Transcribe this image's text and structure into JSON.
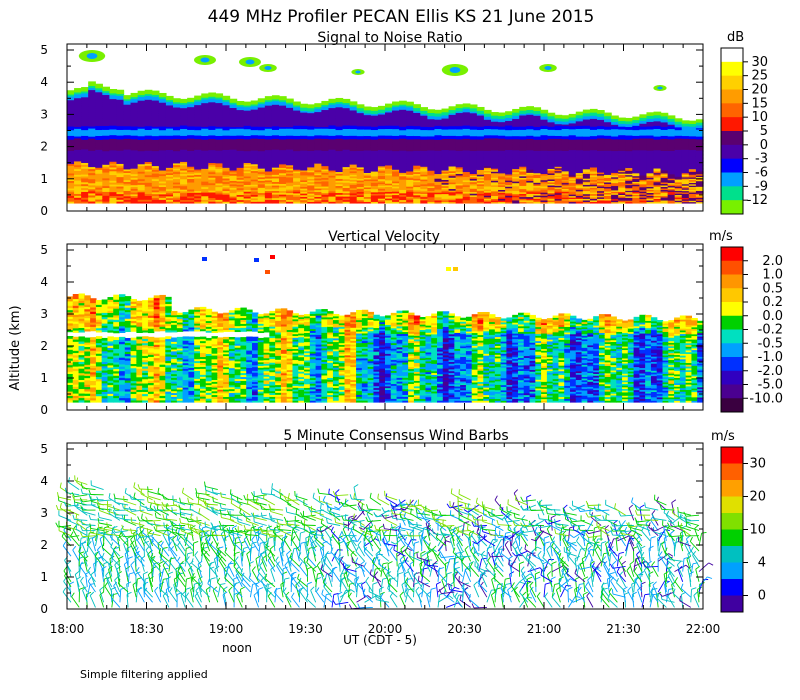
{
  "figure": {
    "title": "449 MHz Profiler PECAN Ellis KS 21 June 2015",
    "ylabel": "Altitude (km)",
    "xlabel": "UT  (CDT - 5)",
    "noon_label": "noon",
    "footnote": "Simple filtering applied",
    "x_ticks": [
      "18:00",
      "18:30",
      "19:00",
      "19:30",
      "20:00",
      "20:30",
      "21:00",
      "21:30",
      "22:00"
    ],
    "y_ticks": [
      "0",
      "1",
      "2",
      "3",
      "4",
      "5"
    ]
  },
  "chart_data": [
    {
      "type": "heatmap",
      "title": "Signal to Noise Ratio",
      "x_range": [
        "18:00",
        "22:00"
      ],
      "y_range": [
        0,
        5
      ],
      "colorbar": {
        "unit": "dB",
        "ticks": [
          "30",
          "25",
          "20",
          "15",
          "10",
          "5",
          "0",
          "-3",
          "-6",
          "-9",
          "-12"
        ],
        "colors": [
          "#ffffff",
          "#ffff00",
          "#ffd000",
          "#ff9c00",
          "#ff6400",
          "#ff1800",
          "#5a0070",
          "#4a00a8",
          "#0000ff",
          "#00a0ff",
          "#00e08c",
          "#78f000"
        ]
      }
    },
    {
      "type": "heatmap",
      "title": "Vertical Velocity",
      "x_range": [
        "18:00",
        "22:00"
      ],
      "y_range": [
        0,
        5
      ],
      "colorbar": {
        "unit": "m/s",
        "ticks": [
          "2.0",
          "1.0",
          "0.5",
          "0.2",
          "0.0",
          "-0.2",
          "-0.5",
          "-1.0",
          "-2.0",
          "-5.0",
          "-10.0"
        ],
        "colors": [
          "#ff0000",
          "#ff5000",
          "#ff9600",
          "#ffc800",
          "#ffff00",
          "#00d000",
          "#00e0c0",
          "#00a0ff",
          "#0030ff",
          "#3000c0",
          "#4a0090",
          "#3a0040"
        ]
      }
    },
    {
      "type": "scatter",
      "title": "5 Minute Consensus Wind Barbs",
      "x_range": [
        "18:00",
        "22:00"
      ],
      "y_range": [
        0,
        5
      ],
      "colorbar": {
        "unit": "m/s",
        "ticks": [
          "30",
          "20",
          "10",
          "4",
          "0"
        ],
        "colors": [
          "#ff0000",
          "#ff6000",
          "#ffa000",
          "#e0e000",
          "#80e000",
          "#00d000",
          "#00c0c0",
          "#00a0ff",
          "#0000ff",
          "#4000a0"
        ]
      }
    }
  ]
}
